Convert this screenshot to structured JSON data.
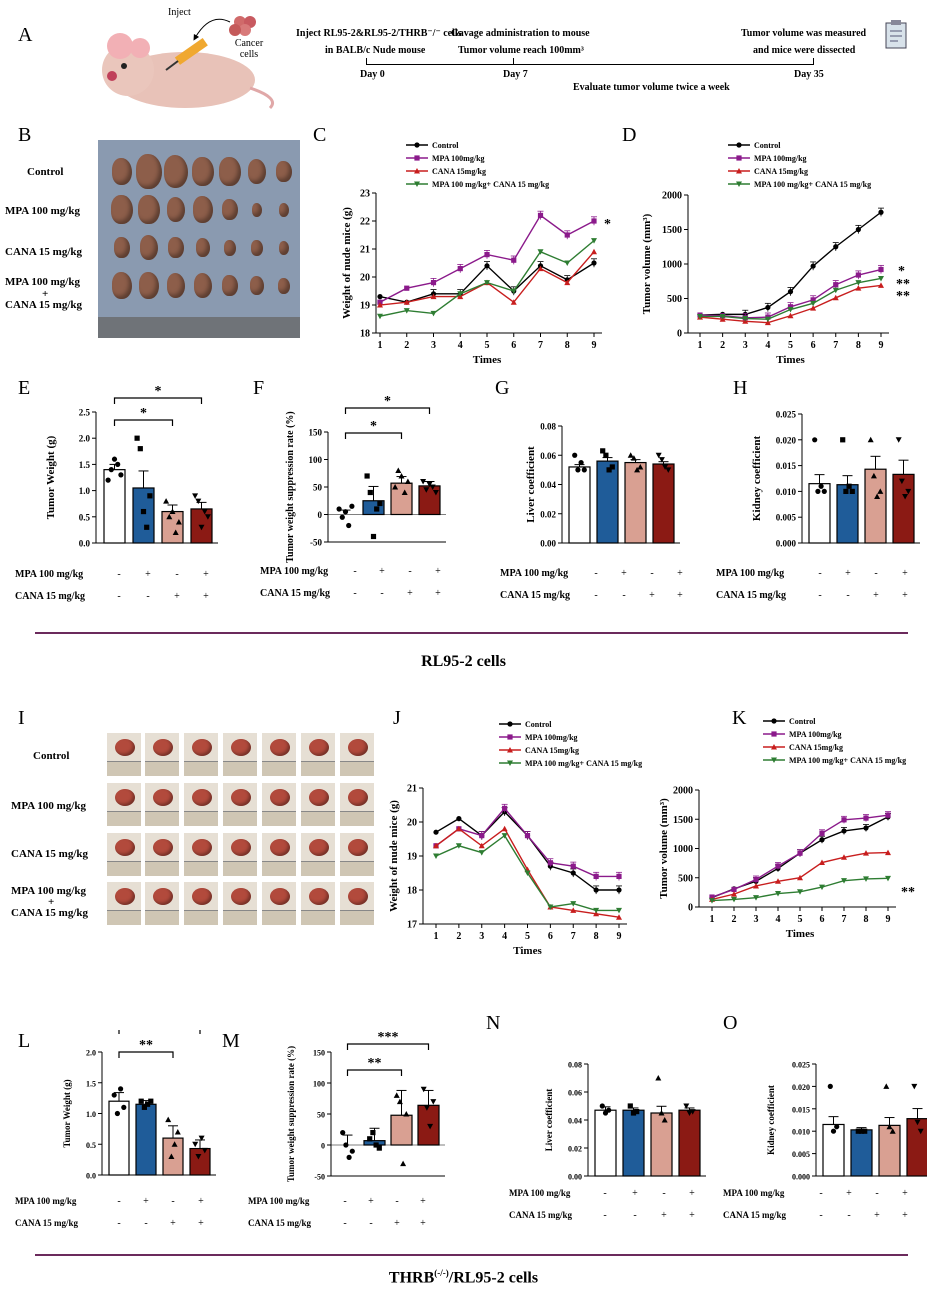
{
  "panel_labels": {
    "A": "A",
    "B": "B",
    "C": "C",
    "D": "D",
    "E": "E",
    "F": "F",
    "G": "G",
    "H": "H",
    "I": "I",
    "J": "J",
    "K": "K",
    "L": "L",
    "M": "M",
    "N": "N",
    "O": "O"
  },
  "schematic": {
    "inject": "Inject",
    "cancer_cells": "Cancer cells",
    "step1": "Inject RL95-2&RL95-2/THRB⁻/⁻ cells",
    "step1b": "in BALB/c Nude mouse",
    "step2": "Gavage administration to mouse",
    "step2b": "Tumor volume reach 100mm³",
    "step3": "Tumor volume was measured",
    "step3b": "and mice were dissected",
    "day0": "Day 0",
    "day7": "Day 7",
    "day35": "Day 35",
    "evaluate": "Evaluate tumor volume twice a week"
  },
  "photo_rows": {
    "control": "Control",
    "mpa": "MPA 100 mg/kg",
    "cana": "CANA 15 mg/kg",
    "combo1": "MPA 100  mg/kg",
    "combo_plus": "+",
    "combo2": "CANA 15 mg/kg"
  },
  "section_titles": {
    "top": "RL95-2 cells",
    "bottom_main": "THRB",
    "bottom_sup": "(-/-)",
    "bottom_rest": "/RL95-2 cells"
  },
  "treatment_labels": {
    "mpa": "MPA 100 mg/kg",
    "cana": "CANA 15 mg/kg",
    "mpa_row": [
      "-",
      "+",
      "-",
      "+"
    ],
    "cana_row": [
      "-",
      "-",
      "+",
      "+"
    ]
  },
  "colors": {
    "control": "#000000",
    "mpa": "#8b1a8b",
    "cana": "#c81e1e",
    "combo": "#2e7d32",
    "bar_control": "#ffffff",
    "bar_mpa": "#1f5c99",
    "bar_cana": "#d9a092",
    "bar_combo": "#8b1a14"
  },
  "legend": {
    "control": "Control",
    "mpa": "MPA 100mg/kg",
    "cana": "CANA 15mg/kg",
    "combo": "MPA 100 mg/kg+ CANA 15 mg/kg"
  },
  "chart_data": [
    {
      "id": "C",
      "type": "line",
      "xlabel": "Times",
      "ylabel": "Weight of nude mice (g)",
      "x": [
        1,
        2,
        3,
        4,
        5,
        6,
        7,
        8,
        9
      ],
      "ylim": [
        18,
        23
      ],
      "yticks": [
        18,
        19,
        20,
        21,
        22,
        23
      ],
      "annotation": "*",
      "series": [
        {
          "name": "Control",
          "values": [
            19.3,
            19.1,
            19.4,
            19.4,
            20.4,
            19.5,
            20.4,
            19.9,
            20.5
          ]
        },
        {
          "name": "MPA 100mg/kg",
          "values": [
            19.1,
            19.6,
            19.8,
            20.3,
            20.8,
            20.6,
            22.2,
            21.5,
            22.0
          ]
        },
        {
          "name": "CANA 15mg/kg",
          "values": [
            19.0,
            19.1,
            19.3,
            19.3,
            19.8,
            19.1,
            20.3,
            19.8,
            20.9
          ]
        },
        {
          "name": "MPA 100 mg/kg+ CANA 15 mg/kg",
          "values": [
            18.6,
            18.8,
            18.7,
            19.4,
            19.8,
            19.5,
            20.9,
            20.5,
            21.3
          ]
        }
      ]
    },
    {
      "id": "D",
      "type": "line",
      "xlabel": "Times",
      "ylabel": "Tumor volume (mm³)",
      "x": [
        1,
        2,
        3,
        4,
        5,
        6,
        7,
        8,
        9
      ],
      "ylim": [
        0,
        2000
      ],
      "yticks": [
        0,
        500,
        1000,
        1500,
        2000
      ],
      "annotations": [
        "*",
        "**",
        "**"
      ],
      "series": [
        {
          "name": "Control",
          "values": [
            260,
            270,
            270,
            370,
            600,
            970,
            1250,
            1500,
            1750
          ]
        },
        {
          "name": "MPA 100mg/kg",
          "values": [
            260,
            250,
            220,
            230,
            380,
            480,
            700,
            840,
            920
          ]
        },
        {
          "name": "CANA 15mg/kg",
          "values": [
            230,
            200,
            170,
            150,
            250,
            360,
            510,
            650,
            690
          ]
        },
        {
          "name": "MPA 100 mg/kg+ CANA 15 mg/kg",
          "values": [
            240,
            240,
            210,
            200,
            340,
            430,
            620,
            730,
            790
          ]
        }
      ]
    },
    {
      "id": "E",
      "type": "bar",
      "ylabel": "Tumor Weight (g)",
      "ylim": [
        0,
        2.5
      ],
      "yticks": [
        0.0,
        0.5,
        1.0,
        1.5,
        2.0,
        2.5
      ],
      "values": [
        1.4,
        1.05,
        0.6,
        0.65
      ],
      "sig": [
        "*",
        "*"
      ]
    },
    {
      "id": "F",
      "type": "bar",
      "ylabel": "Tumor weight suppression rate (%)",
      "ylim": [
        -50,
        150
      ],
      "yticks": [
        -50,
        0,
        50,
        100,
        150
      ],
      "values": [
        0,
        25,
        57,
        52
      ],
      "sig": [
        "*",
        "*"
      ]
    },
    {
      "id": "G",
      "type": "bar",
      "ylabel": "Liver coefficient",
      "ylim": [
        0,
        0.08
      ],
      "yticks": [
        0.0,
        0.02,
        0.04,
        0.06,
        0.08
      ],
      "values": [
        0.052,
        0.056,
        0.055,
        0.054
      ]
    },
    {
      "id": "H",
      "type": "bar",
      "ylabel": "Kidney coefficient",
      "ylim": [
        0,
        0.025
      ],
      "yticks": [
        0.0,
        0.005,
        0.01,
        0.015,
        0.02,
        0.025
      ],
      "values": [
        0.0115,
        0.0113,
        0.0143,
        0.0133
      ]
    },
    {
      "id": "J",
      "type": "line",
      "xlabel": "Times",
      "ylabel": "Weight of nude mice (g)",
      "x": [
        1,
        2,
        3,
        4,
        5,
        6,
        7,
        8,
        9
      ],
      "ylim": [
        17,
        21
      ],
      "yticks": [
        17,
        18,
        19,
        20,
        21
      ],
      "series": [
        {
          "name": "Control",
          "values": [
            19.7,
            20.1,
            19.6,
            20.3,
            19.6,
            18.7,
            18.5,
            18.0,
            18.0
          ]
        },
        {
          "name": "MPA 100mg/kg",
          "values": [
            19.3,
            19.8,
            19.6,
            20.4,
            19.6,
            18.8,
            18.7,
            18.4,
            18.4
          ]
        },
        {
          "name": "CANA 15mg/kg",
          "values": [
            19.3,
            19.8,
            19.3,
            19.8,
            18.6,
            17.5,
            17.4,
            17.3,
            17.2
          ]
        },
        {
          "name": "MPA 100 mg/kg+ CANA 15 mg/kg",
          "values": [
            19.0,
            19.3,
            19.1,
            19.6,
            18.5,
            17.5,
            17.6,
            17.4,
            17.4
          ]
        }
      ]
    },
    {
      "id": "K",
      "type": "line",
      "xlabel": "Times",
      "ylabel": "Tumor volume (mm³)",
      "x": [
        1,
        2,
        3,
        4,
        5,
        6,
        7,
        8,
        9
      ],
      "ylim": [
        0,
        2000
      ],
      "yticks": [
        0,
        500,
        1000,
        1500,
        2000
      ],
      "annotation": "**",
      "series": [
        {
          "name": "Control",
          "values": [
            160,
            310,
            440,
            660,
            920,
            1150,
            1300,
            1350,
            1540
          ]
        },
        {
          "name": "MPA 100mg/kg",
          "values": [
            170,
            300,
            470,
            700,
            920,
            1260,
            1490,
            1520,
            1570
          ]
        },
        {
          "name": "CANA 15mg/kg",
          "values": [
            130,
            220,
            360,
            440,
            500,
            760,
            850,
            920,
            930
          ]
        },
        {
          "name": "MPA 100 mg/kg+ CANA 15 mg/kg",
          "values": [
            110,
            130,
            160,
            230,
            260,
            340,
            450,
            480,
            490
          ]
        }
      ]
    },
    {
      "id": "L",
      "type": "bar",
      "ylabel": "Tumor Weight (g)",
      "ylim": [
        0,
        2.0
      ],
      "yticks": [
        0.0,
        0.5,
        1.0,
        1.5,
        2.0
      ],
      "values": [
        1.2,
        1.15,
        0.6,
        0.43
      ],
      "sig": [
        "**",
        "***"
      ]
    },
    {
      "id": "M",
      "type": "bar",
      "ylabel": "Tumor weight suppression rate (%)",
      "ylim": [
        -50,
        150
      ],
      "yticks": [
        -50,
        0,
        50,
        100,
        150
      ],
      "values": [
        0,
        7,
        48,
        64
      ],
      "sig": [
        "**",
        "***"
      ]
    },
    {
      "id": "N",
      "type": "bar",
      "ylabel": "Liver coefficient",
      "ylim": [
        0,
        0.08
      ],
      "yticks": [
        0.0,
        0.02,
        0.04,
        0.06,
        0.08
      ],
      "values": [
        0.047,
        0.047,
        0.045,
        0.047
      ]
    },
    {
      "id": "O",
      "type": "bar",
      "ylabel": "Kidney coefficient",
      "ylim": [
        0,
        0.025
      ],
      "yticks": [
        0.0,
        0.005,
        0.01,
        0.015,
        0.02,
        0.025
      ],
      "values": [
        0.0115,
        0.0103,
        0.0113,
        0.0128
      ]
    }
  ]
}
